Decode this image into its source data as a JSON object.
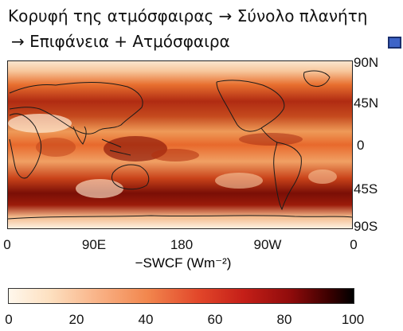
{
  "title": {
    "line1": "Κορυφή της ατμόσφαιρας → Σύνολο πλανήτη",
    "line2": "→  Επιφάνεια + Ατμόσφαιρα"
  },
  "legend": {
    "swatch_color": "#3d64c8"
  },
  "map": {
    "variable_label": "−SWCF (Wm⁻²)",
    "lat_labels": [
      "90N",
      "45N",
      "0",
      "45S",
      "90S"
    ],
    "lon_labels": [
      "0",
      "90E",
      "180",
      "90W",
      "0"
    ]
  },
  "colorbar": {
    "ticks": [
      "0",
      "20",
      "40",
      "60",
      "80",
      "100"
    ],
    "colors": [
      "#fff7ec",
      "#f9b58a",
      "#e2472a",
      "#8e0b0b",
      "#000000"
    ]
  }
}
